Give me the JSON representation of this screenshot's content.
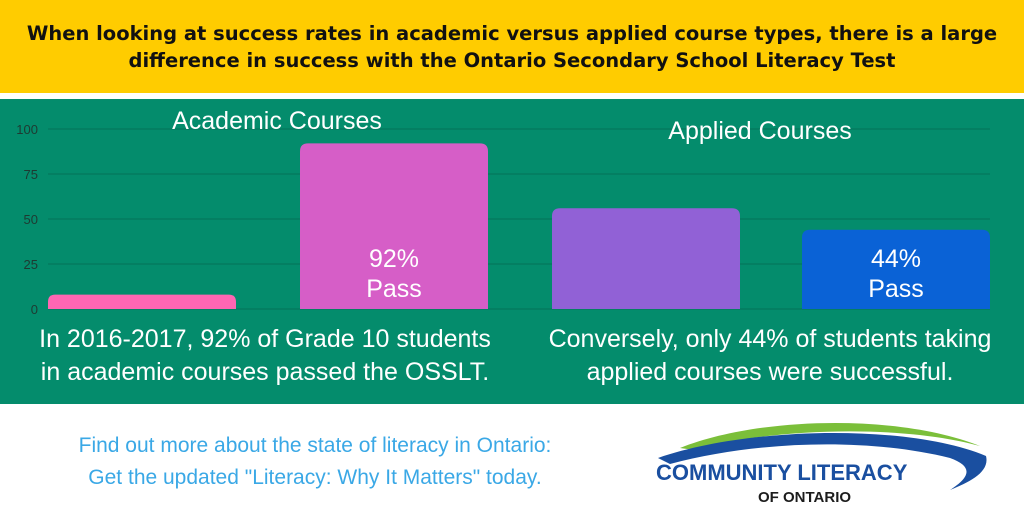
{
  "header": {
    "title": "When looking at success rates in academic versus applied course types, there is a large difference in success with the Ontario Secondary School Literacy Test"
  },
  "chart_data": {
    "type": "bar",
    "ylim": [
      0,
      100
    ],
    "y_ticks": [
      "0",
      "25",
      "50",
      "75",
      "100"
    ],
    "grid": true,
    "groups": [
      {
        "label": "Academic Courses",
        "bars": [
          {
            "value": 8,
            "color": "#ff66b3",
            "label": ""
          },
          {
            "value": 92,
            "color": "#d65ec7",
            "label": "92%\nPass"
          }
        ]
      },
      {
        "label": "Applied Courses",
        "bars": [
          {
            "value": 56,
            "color": "#9161d6",
            "label": ""
          },
          {
            "value": 44,
            "color": "#0a62d6",
            "label": "44%\nPass"
          }
        ]
      }
    ]
  },
  "captions": {
    "academic": "In 2016-2017, 92% of Grade 10 students in academic courses passed the OSSLT.",
    "applied": "Conversely, only 44% of students taking applied courses were successful."
  },
  "footer": {
    "line1": "Find out more about the state of literacy in Ontario:",
    "line2": "Get the updated \"Literacy: Why It Matters\" today."
  },
  "logo": {
    "name": "COMMUNITY LITERACY",
    "sub": "OF ONTARIO",
    "colors": {
      "blue": "#1a4fa0",
      "green": "#7bbf3a",
      "dark": "#1c1c1c"
    }
  }
}
